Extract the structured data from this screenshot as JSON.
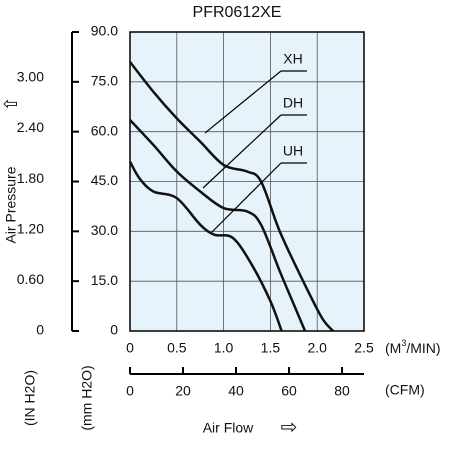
{
  "chart_data": {
    "type": "line",
    "title": "PFR0612XE",
    "x_label": "Air Flow",
    "x_arrow": "⇨",
    "x_unit": "(M",
    "x_unit_sup": "3",
    "x_unit_end": "/MIN)",
    "x2_unit": "(CFM)",
    "y_label": "Air Pressure",
    "y_arrow": "⇧",
    "y_unit": "(mm H2O)",
    "y2_unit": "(IN H2O)",
    "xlim": [
      0,
      2.5
    ],
    "xticks": [
      0,
      0.5,
      {
        "value": 1,
        "label": "1.0"
      },
      1.5,
      {
        "value": 2,
        "label": "2.0"
      },
      2.5
    ],
    "x2lim": [
      0,
      88.29
    ],
    "x2ticks": [
      0,
      20,
      40,
      60,
      80
    ],
    "ylim": [
      0,
      90
    ],
    "yticks": [
      0,
      {
        "value": 15,
        "label": "15.0"
      },
      {
        "value": 30,
        "label": "30.0"
      },
      {
        "value": 45,
        "label": "45.0"
      },
      {
        "value": 60,
        "label": "60.0"
      },
      {
        "value": 75,
        "label": "75.0"
      },
      {
        "value": 90,
        "label": "90.0"
      }
    ],
    "y2lim": [
      0,
      3.543
    ],
    "y2ticks": [
      0,
      {
        "value": 0.6,
        "label": "0.60"
      },
      {
        "value": 1.2,
        "label": "1.20"
      },
      {
        "value": 1.8,
        "label": "1.80"
      },
      {
        "value": 2.4,
        "label": "2.40"
      },
      {
        "value": 3,
        "label": "3.00"
      }
    ],
    "grid": true,
    "background": "#e6f3fb",
    "series": [
      {
        "name": "XH",
        "color": "#111111",
        "x": [
          0,
          0.25,
          0.5,
          0.75,
          1.0,
          1.25,
          1.4,
          1.6,
          1.85,
          2.05,
          2.17
        ],
        "values": [
          81,
          72,
          64,
          57,
          50,
          48,
          45,
          30,
          15,
          4,
          0
        ]
      },
      {
        "name": "DH",
        "color": "#111111",
        "x": [
          0,
          0.25,
          0.5,
          0.75,
          1.0,
          1.25,
          1.4,
          1.6,
          1.75,
          1.87
        ],
        "values": [
          63.5,
          56,
          48,
          42,
          37,
          36,
          32,
          18,
          8,
          0
        ]
      },
      {
        "name": "UH",
        "color": "#111111",
        "x": [
          0,
          0.1,
          0.25,
          0.5,
          0.75,
          0.9,
          1.1,
          1.3,
          1.5,
          1.62
        ],
        "values": [
          51,
          46,
          42,
          40,
          32,
          29,
          28,
          20,
          9,
          0
        ]
      }
    ]
  }
}
